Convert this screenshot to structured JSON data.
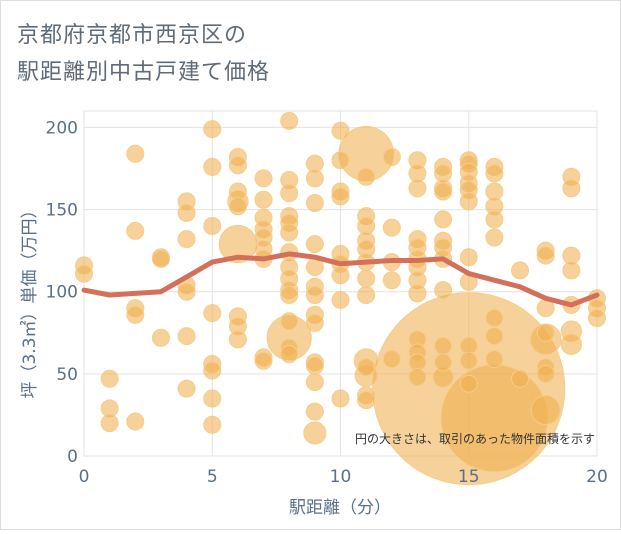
{
  "chart_data": {
    "type": "scatter",
    "title_lines": [
      "京都府京都市西京区の",
      "駅距離別中古戸建て価格"
    ],
    "xlabel": "駅距離（分）",
    "ylabel": "坪（3.3㎡）単価（万円）",
    "xlim": [
      0,
      20
    ],
    "ylim": [
      0,
      210
    ],
    "x_ticks": [
      0,
      5,
      10,
      15,
      20
    ],
    "y_ticks": [
      0,
      50,
      100,
      150,
      200
    ],
    "grid": true,
    "annotation": "円の大きさは、取引のあった物件面積を示す",
    "colors": {
      "bubble": "#f0b050",
      "bubble_stroke": "#f7cc88",
      "trend": "#d4705a",
      "axis_text": "#5a7088",
      "grid": "#e3e3e3"
    },
    "trend_line": {
      "x": [
        0,
        1,
        2,
        3,
        4,
        5,
        6,
        7,
        8,
        9,
        10,
        11,
        12,
        13,
        14,
        15,
        16,
        17,
        18,
        19,
        20
      ],
      "y": [
        101,
        98,
        99,
        100,
        109,
        118,
        121,
        120,
        123,
        121,
        117,
        118,
        119,
        119,
        120,
        111,
        107,
        103,
        96,
        92,
        98
      ]
    },
    "points": [
      {
        "x": 0,
        "y": 116,
        "size": 1
      },
      {
        "x": 0,
        "y": 111,
        "size": 1
      },
      {
        "x": 1,
        "y": 47,
        "size": 1
      },
      {
        "x": 1,
        "y": 29,
        "size": 1
      },
      {
        "x": 1,
        "y": 20,
        "size": 1
      },
      {
        "x": 2,
        "y": 184,
        "size": 1
      },
      {
        "x": 2,
        "y": 137,
        "size": 1
      },
      {
        "x": 2,
        "y": 90,
        "size": 1
      },
      {
        "x": 2,
        "y": 86,
        "size": 1
      },
      {
        "x": 2,
        "y": 21,
        "size": 1
      },
      {
        "x": 3,
        "y": 121,
        "size": 1
      },
      {
        "x": 3,
        "y": 120,
        "size": 1
      },
      {
        "x": 3,
        "y": 72,
        "size": 1
      },
      {
        "x": 4,
        "y": 155,
        "size": 1
      },
      {
        "x": 4,
        "y": 148,
        "size": 1
      },
      {
        "x": 4,
        "y": 132,
        "size": 1
      },
      {
        "x": 4,
        "y": 104,
        "size": 1
      },
      {
        "x": 4,
        "y": 100,
        "size": 1
      },
      {
        "x": 4,
        "y": 73,
        "size": 1
      },
      {
        "x": 4,
        "y": 41,
        "size": 1
      },
      {
        "x": 5,
        "y": 199,
        "size": 1
      },
      {
        "x": 5,
        "y": 176,
        "size": 1
      },
      {
        "x": 5,
        "y": 140,
        "size": 1
      },
      {
        "x": 5,
        "y": 87,
        "size": 1
      },
      {
        "x": 5,
        "y": 56,
        "size": 1
      },
      {
        "x": 5,
        "y": 52,
        "size": 1
      },
      {
        "x": 5,
        "y": 35,
        "size": 1
      },
      {
        "x": 5,
        "y": 19,
        "size": 1
      },
      {
        "x": 6,
        "y": 182,
        "size": 1
      },
      {
        "x": 6,
        "y": 177,
        "size": 1
      },
      {
        "x": 6,
        "y": 161,
        "size": 1
      },
      {
        "x": 6,
        "y": 155,
        "size": 1.2
      },
      {
        "x": 6,
        "y": 152,
        "size": 1
      },
      {
        "x": 6,
        "y": 129,
        "size": 2.2
      },
      {
        "x": 6,
        "y": 85,
        "size": 1
      },
      {
        "x": 6,
        "y": 79,
        "size": 1
      },
      {
        "x": 6,
        "y": 71,
        "size": 1
      },
      {
        "x": 7,
        "y": 169,
        "size": 1
      },
      {
        "x": 7,
        "y": 156,
        "size": 1
      },
      {
        "x": 7,
        "y": 145,
        "size": 1
      },
      {
        "x": 7,
        "y": 138,
        "size": 1
      },
      {
        "x": 7,
        "y": 133,
        "size": 1
      },
      {
        "x": 7,
        "y": 126,
        "size": 1
      },
      {
        "x": 7,
        "y": 120,
        "size": 1
      },
      {
        "x": 7,
        "y": 60,
        "size": 1
      },
      {
        "x": 7,
        "y": 58,
        "size": 1
      },
      {
        "x": 8,
        "y": 204,
        "size": 1
      },
      {
        "x": 8,
        "y": 168,
        "size": 1
      },
      {
        "x": 8,
        "y": 160,
        "size": 1
      },
      {
        "x": 8,
        "y": 146,
        "size": 1
      },
      {
        "x": 8,
        "y": 142,
        "size": 1
      },
      {
        "x": 8,
        "y": 136,
        "size": 1
      },
      {
        "x": 8,
        "y": 124,
        "size": 1
      },
      {
        "x": 8,
        "y": 115,
        "size": 1
      },
      {
        "x": 8,
        "y": 108,
        "size": 1
      },
      {
        "x": 8,
        "y": 101,
        "size": 1
      },
      {
        "x": 8,
        "y": 98,
        "size": 1
      },
      {
        "x": 8,
        "y": 82,
        "size": 1
      },
      {
        "x": 8,
        "y": 72,
        "size": 2.6
      },
      {
        "x": 8,
        "y": 66,
        "size": 1
      },
      {
        "x": 8,
        "y": 62,
        "size": 1
      },
      {
        "x": 9,
        "y": 178,
        "size": 1
      },
      {
        "x": 9,
        "y": 169,
        "size": 1
      },
      {
        "x": 9,
        "y": 154,
        "size": 1
      },
      {
        "x": 9,
        "y": 129,
        "size": 1
      },
      {
        "x": 9,
        "y": 115,
        "size": 1
      },
      {
        "x": 9,
        "y": 103,
        "size": 1
      },
      {
        "x": 9,
        "y": 98,
        "size": 1
      },
      {
        "x": 9,
        "y": 86,
        "size": 1
      },
      {
        "x": 9,
        "y": 81,
        "size": 1
      },
      {
        "x": 9,
        "y": 57,
        "size": 1
      },
      {
        "x": 9,
        "y": 55,
        "size": 1
      },
      {
        "x": 9,
        "y": 45,
        "size": 1
      },
      {
        "x": 9,
        "y": 27,
        "size": 1
      },
      {
        "x": 9,
        "y": 14,
        "size": 1.3
      },
      {
        "x": 10,
        "y": 198,
        "size": 1
      },
      {
        "x": 10,
        "y": 180,
        "size": 1
      },
      {
        "x": 10,
        "y": 161,
        "size": 1
      },
      {
        "x": 10,
        "y": 158,
        "size": 1
      },
      {
        "x": 10,
        "y": 123,
        "size": 1
      },
      {
        "x": 10,
        "y": 117,
        "size": 1
      },
      {
        "x": 10,
        "y": 110,
        "size": 1
      },
      {
        "x": 10,
        "y": 95,
        "size": 1
      },
      {
        "x": 10,
        "y": 35,
        "size": 1
      },
      {
        "x": 11,
        "y": 184,
        "size": 3.2
      },
      {
        "x": 11,
        "y": 170,
        "size": 1
      },
      {
        "x": 11,
        "y": 146,
        "size": 1
      },
      {
        "x": 11,
        "y": 140,
        "size": 1
      },
      {
        "x": 11,
        "y": 131,
        "size": 1
      },
      {
        "x": 11,
        "y": 126,
        "size": 1
      },
      {
        "x": 11,
        "y": 118,
        "size": 1
      },
      {
        "x": 11,
        "y": 108,
        "size": 1
      },
      {
        "x": 11,
        "y": 98,
        "size": 1
      },
      {
        "x": 11,
        "y": 58,
        "size": 1.4
      },
      {
        "x": 11,
        "y": 54,
        "size": 1
      },
      {
        "x": 11,
        "y": 49,
        "size": 1.3
      },
      {
        "x": 11,
        "y": 37,
        "size": 1
      },
      {
        "x": 11,
        "y": 34,
        "size": 1
      },
      {
        "x": 12,
        "y": 182,
        "size": 1
      },
      {
        "x": 12,
        "y": 139,
        "size": 1
      },
      {
        "x": 12,
        "y": 118,
        "size": 1
      },
      {
        "x": 12,
        "y": 107,
        "size": 1
      },
      {
        "x": 12,
        "y": 59,
        "size": 1
      },
      {
        "x": 13,
        "y": 180,
        "size": 1
      },
      {
        "x": 13,
        "y": 172,
        "size": 1
      },
      {
        "x": 13,
        "y": 163,
        "size": 1
      },
      {
        "x": 13,
        "y": 132,
        "size": 1
      },
      {
        "x": 13,
        "y": 127,
        "size": 1
      },
      {
        "x": 13,
        "y": 120,
        "size": 1
      },
      {
        "x": 13,
        "y": 115,
        "size": 1
      },
      {
        "x": 13,
        "y": 107,
        "size": 1
      },
      {
        "x": 13,
        "y": 99,
        "size": 1
      },
      {
        "x": 13,
        "y": 71,
        "size": 1
      },
      {
        "x": 13,
        "y": 63,
        "size": 1
      },
      {
        "x": 13,
        "y": 57,
        "size": 1
      },
      {
        "x": 13,
        "y": 48,
        "size": 1
      },
      {
        "x": 14,
        "y": 176,
        "size": 1
      },
      {
        "x": 14,
        "y": 172,
        "size": 1
      },
      {
        "x": 14,
        "y": 163,
        "size": 1
      },
      {
        "x": 14,
        "y": 161,
        "size": 1
      },
      {
        "x": 14,
        "y": 144,
        "size": 1
      },
      {
        "x": 14,
        "y": 131,
        "size": 1
      },
      {
        "x": 14,
        "y": 127,
        "size": 1
      },
      {
        "x": 14,
        "y": 120,
        "size": 1
      },
      {
        "x": 14,
        "y": 101,
        "size": 1
      },
      {
        "x": 14,
        "y": 67,
        "size": 1
      },
      {
        "x": 14,
        "y": 57,
        "size": 1
      },
      {
        "x": 14,
        "y": 48,
        "size": 1.2
      },
      {
        "x": 15,
        "y": 180,
        "size": 1
      },
      {
        "x": 15,
        "y": 178,
        "size": 1
      },
      {
        "x": 15,
        "y": 173,
        "size": 1
      },
      {
        "x": 15,
        "y": 166,
        "size": 1
      },
      {
        "x": 15,
        "y": 162,
        "size": 1
      },
      {
        "x": 15,
        "y": 155,
        "size": 1
      },
      {
        "x": 15,
        "y": 121,
        "size": 1
      },
      {
        "x": 15,
        "y": 106,
        "size": 1
      },
      {
        "x": 15,
        "y": 67,
        "size": 1
      },
      {
        "x": 15,
        "y": 58,
        "size": 1
      },
      {
        "x": 15,
        "y": 41,
        "size": 11.3
      },
      {
        "x": 15,
        "y": 44,
        "size": 1
      },
      {
        "x": 16,
        "y": 176,
        "size": 1
      },
      {
        "x": 16,
        "y": 172,
        "size": 1
      },
      {
        "x": 16,
        "y": 161,
        "size": 1
      },
      {
        "x": 16,
        "y": 152,
        "size": 1
      },
      {
        "x": 16,
        "y": 144,
        "size": 1
      },
      {
        "x": 16,
        "y": 133,
        "size": 1
      },
      {
        "x": 16,
        "y": 84,
        "size": 1
      },
      {
        "x": 16,
        "y": 73,
        "size": 1
      },
      {
        "x": 16,
        "y": 59,
        "size": 1
      },
      {
        "x": 16,
        "y": 23,
        "size": 6.3
      },
      {
        "x": 17,
        "y": 113,
        "size": 1
      },
      {
        "x": 17,
        "y": 47,
        "size": 1
      },
      {
        "x": 18,
        "y": 125,
        "size": 1
      },
      {
        "x": 18,
        "y": 122,
        "size": 1
      },
      {
        "x": 18,
        "y": 90,
        "size": 1
      },
      {
        "x": 18,
        "y": 75,
        "size": 1
      },
      {
        "x": 18,
        "y": 71,
        "size": 1.8
      },
      {
        "x": 18,
        "y": 54,
        "size": 1
      },
      {
        "x": 18,
        "y": 50,
        "size": 1
      },
      {
        "x": 18,
        "y": 28,
        "size": 1.7
      },
      {
        "x": 19,
        "y": 170,
        "size": 1
      },
      {
        "x": 19,
        "y": 163,
        "size": 1
      },
      {
        "x": 19,
        "y": 122,
        "size": 1
      },
      {
        "x": 19,
        "y": 113,
        "size": 1
      },
      {
        "x": 19,
        "y": 92,
        "size": 1
      },
      {
        "x": 19,
        "y": 76,
        "size": 1.2
      },
      {
        "x": 19,
        "y": 68,
        "size": 1.2
      },
      {
        "x": 20,
        "y": 96,
        "size": 1
      },
      {
        "x": 20,
        "y": 90,
        "size": 1
      },
      {
        "x": 20,
        "y": 84,
        "size": 1
      }
    ]
  }
}
